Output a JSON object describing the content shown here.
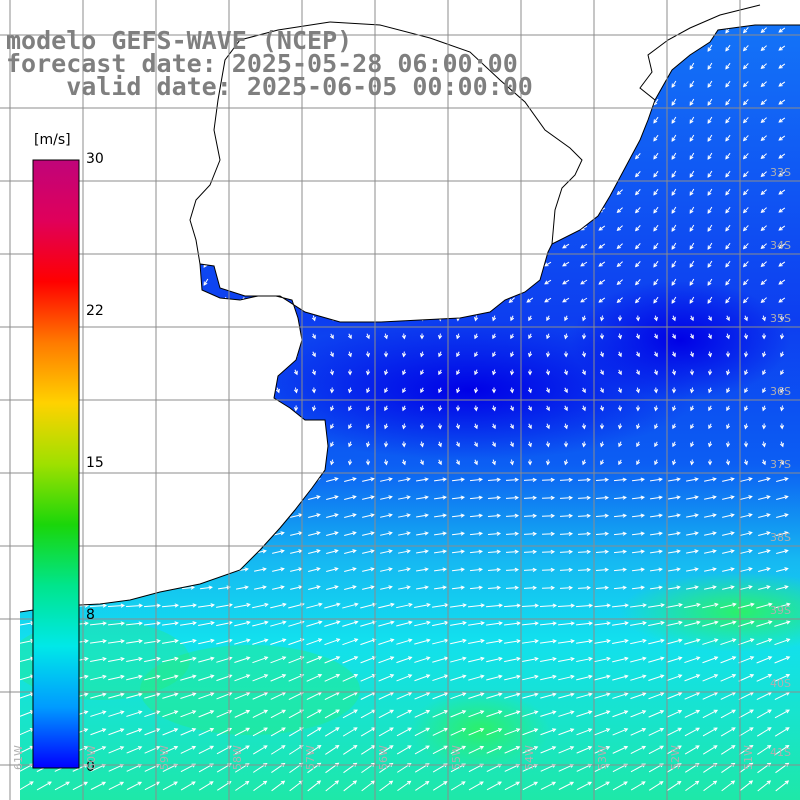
{
  "header": {
    "line1": "modelo GEFS-WAVE (NCEP)",
    "line2": "forecast date: 2025-05-28 06:00:00",
    "line3": "    valid date: 2025-06-05 00:00:00"
  },
  "colorbar": {
    "unit": "[m/s]",
    "ticks": [
      "30",
      "22",
      "15",
      "8",
      "0"
    ],
    "colors": [
      "#c0047a",
      "#e0005a",
      "#ff0000",
      "#ff7a00",
      "#ffd200",
      "#9fe000",
      "#1ad60a",
      "#00e58c",
      "#00e8e8",
      "#009bff",
      "#0000ff"
    ]
  },
  "map": {
    "lat_labels": [
      "33S",
      "34S",
      "35S",
      "36S",
      "37S",
      "38S",
      "39S",
      "40S",
      "41S"
    ],
    "lon_labels": [
      "61W",
      "60W",
      "59W",
      "58W",
      "57W",
      "56W",
      "55W",
      "54W",
      "53W",
      "52W",
      "51W"
    ],
    "ocean_colors": {
      "deep_blue": "#0a28ea",
      "blue": "#0e6cf5",
      "light_blue": "#1a9af5",
      "cyan": "#10d8f0",
      "green": "#22e880"
    },
    "land_color": "#ffffff",
    "grid_color": "#8c8c8c"
  }
}
